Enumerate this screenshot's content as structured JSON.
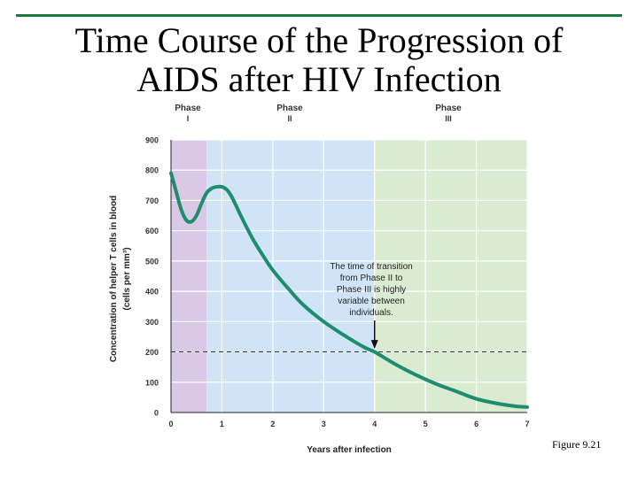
{
  "slide": {
    "title_line1": "Time Course of the Progression of",
    "title_line2": "AIDS after HIV Infection",
    "figure_caption": "Figure 9.21"
  },
  "chart_data": {
    "type": "line",
    "xlabel": "Years after infection",
    "ylabel_line1": "Concentration of helper T cells in blood",
    "ylabel_line2": "(cells per mm³)",
    "xlim": [
      0,
      7
    ],
    "ylim": [
      0,
      900
    ],
    "x_ticks": [
      0,
      1,
      2,
      3,
      4,
      5,
      6,
      7
    ],
    "y_ticks": [
      0,
      100,
      200,
      300,
      400,
      500,
      600,
      700,
      800,
      900
    ],
    "grid": true,
    "phases": [
      {
        "name": "Phase",
        "numeral": "I",
        "x_start": 0,
        "x_end": 0.7,
        "color": "#d9c9e6"
      },
      {
        "name": "Phase",
        "numeral": "II",
        "x_start": 0.7,
        "x_end": 4.0,
        "color": "#cfe5f7"
      },
      {
        "name": "Phase",
        "numeral": "III",
        "x_start": 4.0,
        "x_end": 7.0,
        "color": "#d9ecd2"
      }
    ],
    "series": [
      {
        "color": "#1e8c6e",
        "x": [
          0,
          0.1,
          0.2,
          0.3,
          0.4,
          0.5,
          0.6,
          0.7,
          0.8,
          0.9,
          1.0,
          1.1,
          1.2,
          1.4,
          1.6,
          1.8,
          2.0,
          2.3,
          2.6,
          3.0,
          3.4,
          3.8,
          4.0,
          4.4,
          4.8,
          5.2,
          5.6,
          6.0,
          6.4,
          6.8,
          7.0
        ],
        "y": [
          790,
          730,
          670,
          635,
          630,
          650,
          690,
          725,
          740,
          745,
          745,
          735,
          710,
          640,
          575,
          520,
          470,
          410,
          355,
          300,
          255,
          215,
          200,
          160,
          125,
          95,
          70,
          45,
          30,
          20,
          18
        ]
      }
    ],
    "reference_line": {
      "y": 200,
      "style": "dashed"
    },
    "annotation": {
      "lines": [
        "The time of transition",
        "from Phase II to",
        "Phase III is highly",
        "variable between",
        "individuals."
      ],
      "arrow_to": {
        "x": 4.0,
        "y": 210
      }
    }
  }
}
